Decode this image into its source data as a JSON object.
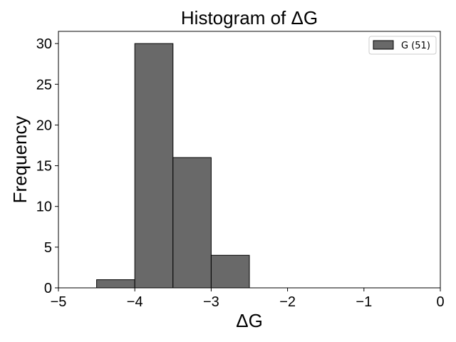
{
  "chart_data": {
    "type": "bar",
    "subtype": "histogram",
    "title": "Histogram of ΔG",
    "xlabel": "ΔG",
    "ylabel": "Frequency",
    "xlim": [
      -5,
      0
    ],
    "ylim": [
      0,
      31.5
    ],
    "xticks": [
      -5,
      -4,
      -3,
      -2,
      -1,
      0
    ],
    "xtick_labels": [
      "−5",
      "−4",
      "−3",
      "−2",
      "−1",
      "0"
    ],
    "yticks": [
      0,
      5,
      10,
      15,
      20,
      25,
      30
    ],
    "ytick_labels": [
      "0",
      "5",
      "10",
      "15",
      "20",
      "25",
      "30"
    ],
    "grid": false,
    "legend_position": "top-right",
    "series": [
      {
        "name": "G (51)",
        "color": "#696969",
        "edge_color": "#000000",
        "bins": [
          {
            "x0": -4.5,
            "x1": -4.0,
            "count": 1
          },
          {
            "x0": -4.0,
            "x1": -3.5,
            "count": 30
          },
          {
            "x0": -3.5,
            "x1": -3.0,
            "count": 16
          },
          {
            "x0": -3.0,
            "x1": -2.5,
            "count": 4
          },
          {
            "x0": -2.5,
            "x1": -2.0,
            "count": 0
          },
          {
            "x0": -2.0,
            "x1": -1.5,
            "count": 0
          },
          {
            "x0": -1.5,
            "x1": -1.0,
            "count": 0
          },
          {
            "x0": -1.0,
            "x1": -0.5,
            "count": 0
          }
        ]
      }
    ]
  }
}
